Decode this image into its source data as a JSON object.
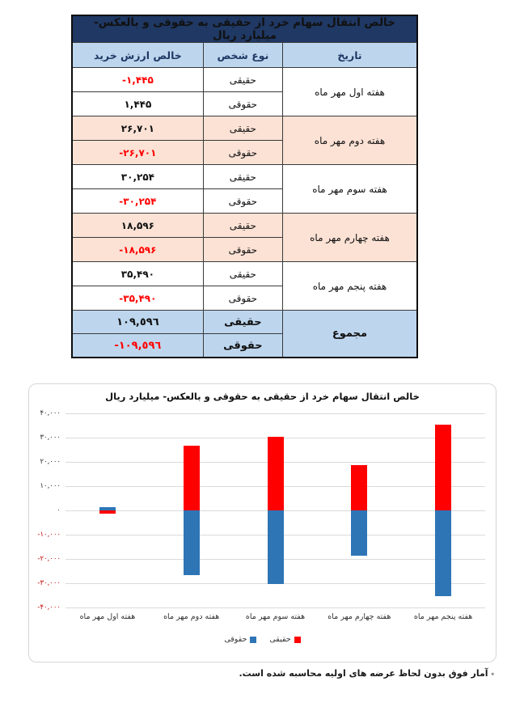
{
  "table": {
    "title": "خالص انتقال سهام خرد از حقیقی به حقوقی و بالعکس- میلیارد ریال",
    "columns": {
      "date": "تاریخ",
      "person_type": "نوع شخص",
      "net_value": "خالص ارزش خرید"
    },
    "groups": [
      {
        "date": "هفته اول مهر ماه",
        "shaded": false,
        "rows": [
          {
            "type": "حقیقی",
            "value": "-۱,۴۴۵",
            "negative": true
          },
          {
            "type": "حقوقی",
            "value": "۱,۴۴۵",
            "negative": false
          }
        ]
      },
      {
        "date": "هفته دوم مهر ماه",
        "shaded": true,
        "rows": [
          {
            "type": "حقیقی",
            "value": "۲۶,۷۰۱",
            "negative": false
          },
          {
            "type": "حقوقی",
            "value": "-۲۶,۷۰۱",
            "negative": true
          }
        ]
      },
      {
        "date": "هفته سوم مهر ماه",
        "shaded": false,
        "rows": [
          {
            "type": "حقیقی",
            "value": "۳۰,۲۵۴",
            "negative": false
          },
          {
            "type": "حقوقی",
            "value": "-۳۰,۲۵۴",
            "negative": true
          }
        ]
      },
      {
        "date": "هفته چهارم مهر ماه",
        "shaded": true,
        "rows": [
          {
            "type": "حقیقی",
            "value": "۱۸,۵۹۶",
            "negative": false
          },
          {
            "type": "حقوقی",
            "value": "-۱۸,۵۹۶",
            "negative": true
          }
        ]
      },
      {
        "date": "هفته پنجم مهر ماه",
        "shaded": false,
        "rows": [
          {
            "type": "حقیقی",
            "value": "۳۵,۴۹۰",
            "negative": false
          },
          {
            "type": "حقوقی",
            "value": "-۳۵,۴۹۰",
            "negative": true
          }
        ]
      }
    ],
    "total": {
      "date": "مجموع",
      "rows": [
        {
          "type": "حقیقی",
          "value": "١٠٩,٥٩٦",
          "negative": false
        },
        {
          "type": "حقوقی",
          "value": "-١٠٩,٥٩٦",
          "negative": true
        }
      ]
    }
  },
  "chart_data": {
    "type": "bar",
    "title": "خالص انتقال سهام خرد از حقیقی به حقوقی و بالعکس- میلیارد ریال",
    "categories": [
      "هفته اول مهر ماه",
      "هفته دوم مهر ماه",
      "هفته سوم مهر ماه",
      "هفته چهارم مهر ماه",
      "هفته پنجم مهر ماه"
    ],
    "series": [
      {
        "name": "حقیقی",
        "color": "#fe0000",
        "values": [
          -1445,
          26701,
          30254,
          18596,
          35490
        ]
      },
      {
        "name": "حقوقی",
        "color": "#2e75b6",
        "values": [
          1445,
          -26701,
          -30254,
          -18596,
          -35490
        ]
      }
    ],
    "ylim": [
      -40000,
      40000
    ],
    "ytick_step": 10000,
    "yticks": [
      {
        "value": 40000,
        "label": "۴۰,۰۰۰"
      },
      {
        "value": 30000,
        "label": "۳۰,۰۰۰"
      },
      {
        "value": 20000,
        "label": "۲۰,۰۰۰"
      },
      {
        "value": 10000,
        "label": "۱۰,۰۰۰"
      },
      {
        "value": 0,
        "label": "۰"
      },
      {
        "value": -10000,
        "label": "-۱۰,۰۰۰"
      },
      {
        "value": -20000,
        "label": "-۲۰,۰۰۰"
      },
      {
        "value": -30000,
        "label": "-۳۰,۰۰۰"
      },
      {
        "value": -40000,
        "label": "-۴۰,۰۰۰"
      }
    ],
    "grid": true,
    "legend_position": "bottom"
  },
  "footnote": {
    "marker": "٭",
    "text": "آمار فوق بدون لحاظ عرضه های اولیه محاسبه شده است."
  },
  "colors": {
    "title_bar": "#1f3864",
    "header_bg": "#bdd6ee",
    "shade_bg": "#fbe2d5",
    "negative_text": "#ff0000",
    "bar_haghighi": "#fe0000",
    "bar_hoghooghi": "#2e75b6",
    "gridline": "#dadada",
    "axis_negative": "#c00000"
  }
}
